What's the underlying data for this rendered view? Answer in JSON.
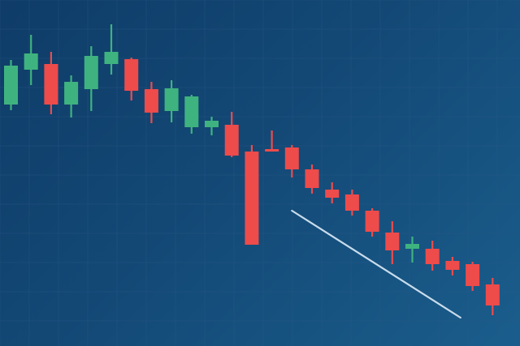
{
  "chart_data": {
    "type": "candlestick",
    "title": "",
    "xlabel": "",
    "ylabel": "",
    "grid": true,
    "legend": "none",
    "ylim": [
      0,
      427
    ],
    "colors": {
      "up": "#3fb37f",
      "down": "#ee4b4b",
      "trendline": "#c9dcec",
      "grid": "#2a5a86"
    },
    "candles": [
      {
        "open": 298,
        "close": 346,
        "high": 353,
        "low": 291
      },
      {
        "open": 341,
        "close": 361,
        "high": 384,
        "low": 322
      },
      {
        "open": 348,
        "close": 298,
        "high": 363,
        "low": 286
      },
      {
        "open": 298,
        "close": 326,
        "high": 334,
        "low": 282
      },
      {
        "open": 317,
        "close": 358,
        "high": 370,
        "low": 290
      },
      {
        "open": 348,
        "close": 363,
        "high": 397,
        "low": 335
      },
      {
        "open": 354,
        "close": 315,
        "high": 356,
        "low": 303
      },
      {
        "open": 317,
        "close": 288,
        "high": 326,
        "low": 275
      },
      {
        "open": 290,
        "close": 318,
        "high": 328,
        "low": 276
      },
      {
        "open": 270,
        "close": 308,
        "high": 310,
        "low": 262
      },
      {
        "open": 270,
        "close": 278,
        "high": 283,
        "low": 260
      },
      {
        "open": 273,
        "close": 235,
        "high": 289,
        "low": 233
      },
      {
        "open": 240,
        "close": 125,
        "high": 248,
        "low": 125
      },
      {
        "open": 243,
        "close": 242,
        "high": 266,
        "low": 240
      },
      {
        "open": 245,
        "close": 218,
        "high": 248,
        "low": 208
      },
      {
        "open": 218,
        "close": 195,
        "high": 224,
        "low": 188
      },
      {
        "open": 193,
        "close": 183,
        "high": 202,
        "low": 176
      },
      {
        "open": 187,
        "close": 167,
        "high": 193,
        "low": 161
      },
      {
        "open": 167,
        "close": 141,
        "high": 170,
        "low": 135
      },
      {
        "open": 140,
        "close": 118,
        "high": 154,
        "low": 101
      },
      {
        "open": 120,
        "close": 126,
        "high": 135,
        "low": 103
      },
      {
        "open": 120,
        "close": 101,
        "high": 130,
        "low": 93
      },
      {
        "open": 105,
        "close": 94,
        "high": 110,
        "low": 87
      },
      {
        "open": 101,
        "close": 74,
        "high": 104,
        "low": 68
      },
      {
        "open": 76,
        "close": 50,
        "high": 84,
        "low": 38
      }
    ],
    "trendline": {
      "from": [
        14,
        167
      ],
      "to": [
        22.4,
        35
      ]
    }
  }
}
